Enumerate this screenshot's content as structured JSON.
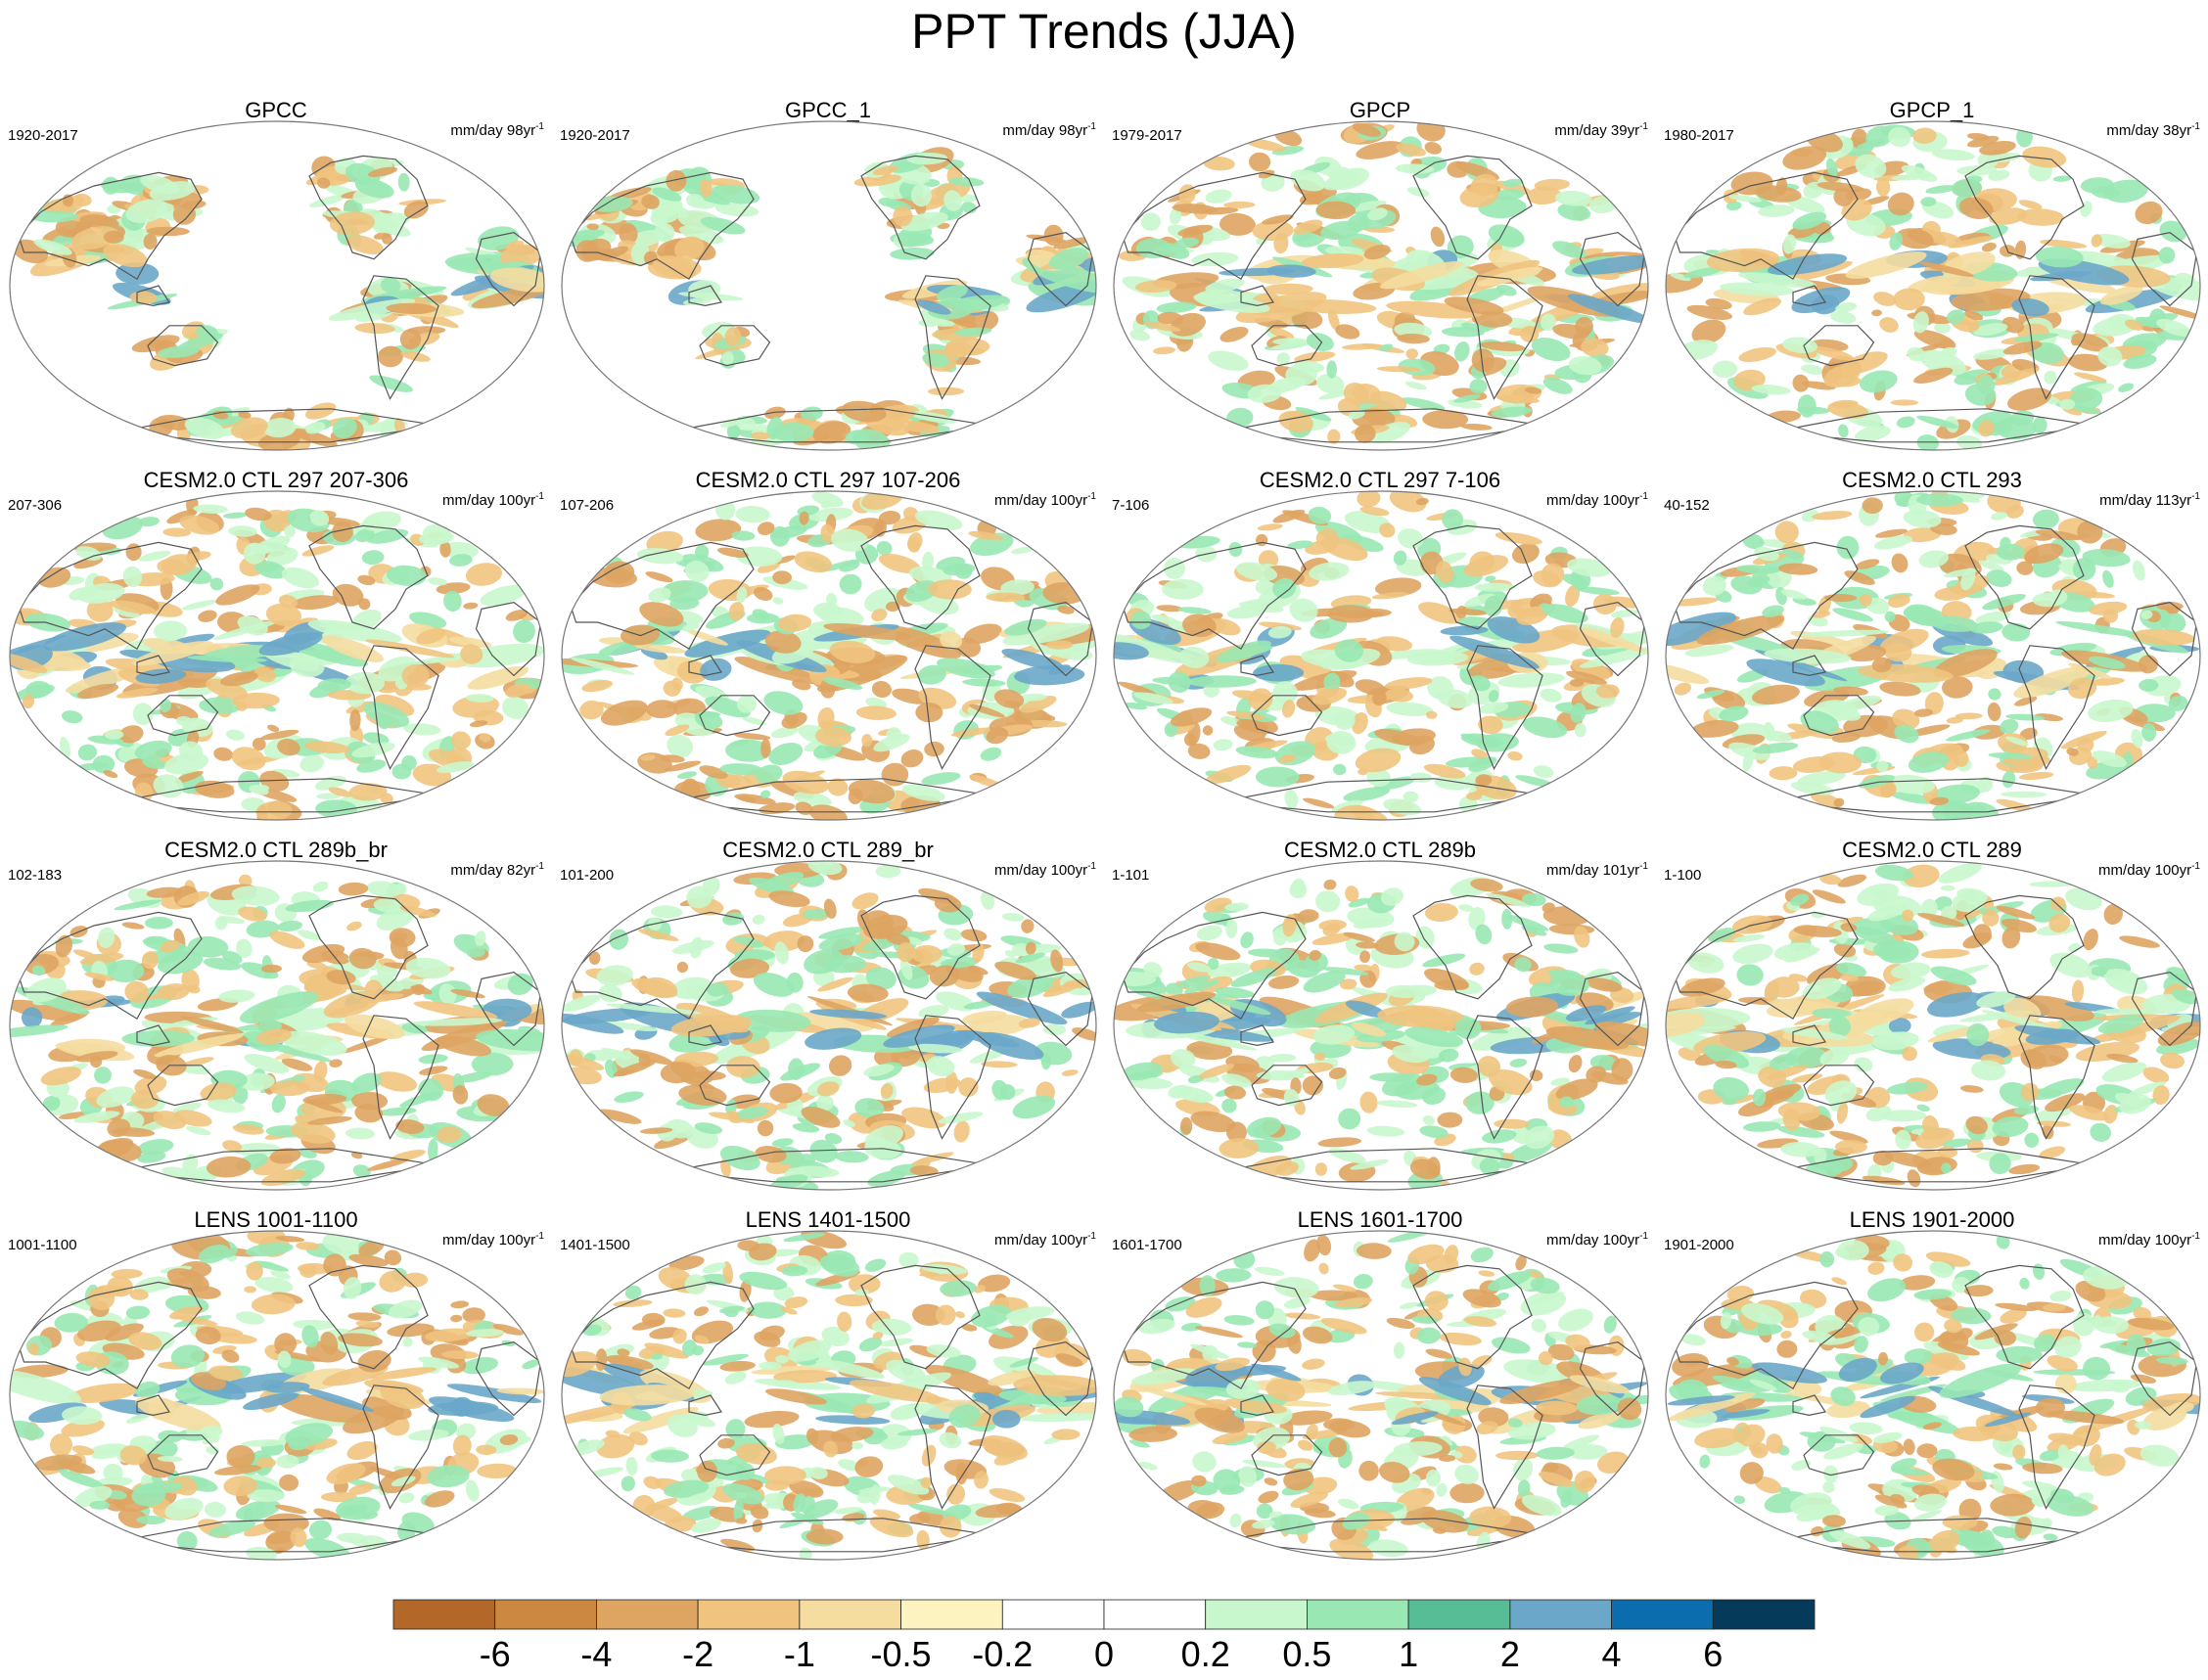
{
  "title": "PPT Trends (JJA)",
  "units_prefix": "mm/day",
  "panels": [
    {
      "title": "GPCC",
      "period": "1920-2017",
      "units": "98yr",
      "sup": "-1",
      "seed": 3,
      "coverage": "land"
    },
    {
      "title": "GPCC_1",
      "period": "1920-2017",
      "units": "98yr",
      "sup": "-1",
      "seed": 5,
      "coverage": "land"
    },
    {
      "title": "GPCP",
      "period": "1979-2017",
      "units": "39yr",
      "sup": "-1",
      "seed": 7,
      "coverage": "global"
    },
    {
      "title": "GPCP_1",
      "period": "1980-2017",
      "units": "38yr",
      "sup": "-1",
      "seed": 11,
      "coverage": "global"
    },
    {
      "title": "CESM2.0 CTL 297 207-306",
      "period": "207-306",
      "units": "100yr",
      "sup": "-1",
      "seed": 13,
      "coverage": "global"
    },
    {
      "title": "CESM2.0 CTL 297 107-206",
      "period": "107-206",
      "units": "100yr",
      "sup": "-1",
      "seed": 17,
      "coverage": "global"
    },
    {
      "title": "CESM2.0 CTL 297 7-106",
      "period": "7-106",
      "units": "100yr",
      "sup": "-1",
      "seed": 19,
      "coverage": "global"
    },
    {
      "title": "CESM2.0 CTL 293",
      "period": "40-152",
      "units": "113yr",
      "sup": "-1",
      "seed": 23,
      "coverage": "global"
    },
    {
      "title": "CESM2.0 CTL 289b_br",
      "period": "102-183",
      "units": "82yr",
      "sup": "-1",
      "seed": 29,
      "coverage": "global"
    },
    {
      "title": "CESM2.0 CTL 289_br",
      "period": "101-200",
      "units": "100yr",
      "sup": "-1",
      "seed": 31,
      "coverage": "global"
    },
    {
      "title": "CESM2.0 CTL 289b",
      "period": "1-101",
      "units": "101yr",
      "sup": "-1",
      "seed": 37,
      "coverage": "global"
    },
    {
      "title": "CESM2.0 CTL 289",
      "period": "1-100",
      "units": "100yr",
      "sup": "-1",
      "seed": 41,
      "coverage": "global"
    },
    {
      "title": "LENS 1001-1100",
      "period": "1001-1100",
      "units": "100yr",
      "sup": "-1",
      "seed": 43,
      "coverage": "global"
    },
    {
      "title": "LENS 1401-1500",
      "period": "1401-1500",
      "units": "100yr",
      "sup": "-1",
      "seed": 47,
      "coverage": "global"
    },
    {
      "title": "LENS 1601-1700",
      "period": "1601-1700",
      "units": "100yr",
      "sup": "-1",
      "seed": 53,
      "coverage": "global"
    },
    {
      "title": "LENS 1901-2000",
      "period": "1901-2000",
      "units": "100yr",
      "sup": "-1",
      "seed": 59,
      "coverage": "global"
    }
  ],
  "colorbar": {
    "levels": [
      "-6",
      "-4",
      "-2",
      "-1",
      "-0.5",
      "-0.2",
      "0",
      "0.2",
      "0.5",
      "1",
      "2",
      "4",
      "6"
    ],
    "colors": [
      "#b3682a",
      "#cc8840",
      "#dea462",
      "#f0c47f",
      "#f5dda0",
      "#fdf3c0",
      "#ffffff",
      "#ffffff",
      "#c9f7cd",
      "#99e8b4",
      "#57bd97",
      "#6aa7c9",
      "#0b6dae",
      "#053a5a"
    ]
  },
  "map_colors": {
    "coast": "#555555",
    "border": "#777777",
    "dry": [
      "#dea462",
      "#f0c47f",
      "#f5dda0"
    ],
    "wet": [
      "#c9f7cd",
      "#99e8b4",
      "#57bd97",
      "#6aa7c9"
    ]
  }
}
